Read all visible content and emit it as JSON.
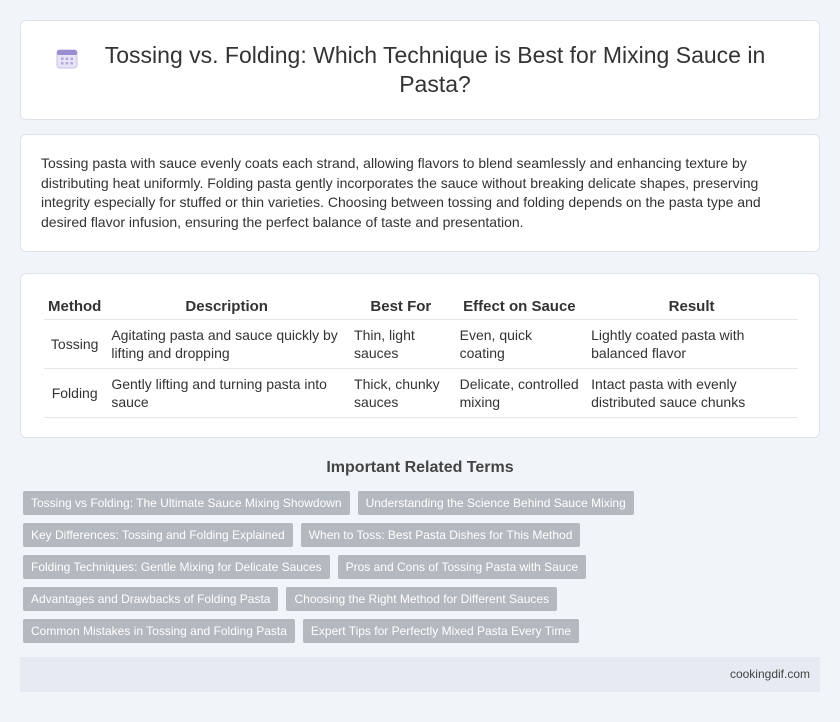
{
  "header": {
    "title": "Tossing vs. Folding: Which Technique is Best for Mixing Sauce in Pasta?",
    "icon": "calendar-icon"
  },
  "intro": {
    "text": "Tossing pasta with sauce evenly coats each strand, allowing flavors to blend seamlessly and enhancing texture by distributing heat uniformly. Folding pasta gently incorporates the sauce without breaking delicate shapes, preserving integrity especially for stuffed or thin varieties. Choosing between tossing and folding depends on the pasta type and desired flavor infusion, ensuring the perfect balance of taste and presentation."
  },
  "table": {
    "headers": [
      "Method",
      "Description",
      "Best For",
      "Effect on Sauce",
      "Result"
    ],
    "rows": [
      [
        "Tossing",
        "Agitating pasta and sauce quickly by lifting and dropping",
        "Thin, light sauces",
        "Even, quick coating",
        "Lightly coated pasta with balanced flavor"
      ],
      [
        "Folding",
        "Gently lifting and turning pasta into sauce",
        "Thick, chunky sauces",
        "Delicate, controlled mixing",
        "Intact pasta with evenly distributed sauce chunks"
      ]
    ]
  },
  "related": {
    "heading": "Important Related Terms",
    "rows": [
      [
        "Tossing vs Folding: The Ultimate Sauce Mixing Showdown",
        "Understanding the Science Behind Sauce Mixing"
      ],
      [
        "Key Differences: Tossing and Folding Explained",
        "When to Toss: Best Pasta Dishes for This Method"
      ],
      [
        "Folding Techniques: Gentle Mixing for Delicate Sauces",
        "Pros and Cons of Tossing Pasta with Sauce"
      ],
      [
        "Advantages and Drawbacks of Folding Pasta",
        "Choosing the Right Method for Different Sauces"
      ],
      [
        "Common Mistakes in Tossing and Folding Pasta",
        "Expert Tips for Perfectly Mixed Pasta Every Time"
      ]
    ]
  },
  "footer": {
    "site": "cookingdif.com"
  },
  "colors": {
    "background": "#f1f4f8",
    "tag": "#b4b8bf",
    "footer": "#e6ebf3",
    "icon_accent": "#8e7cc3"
  }
}
